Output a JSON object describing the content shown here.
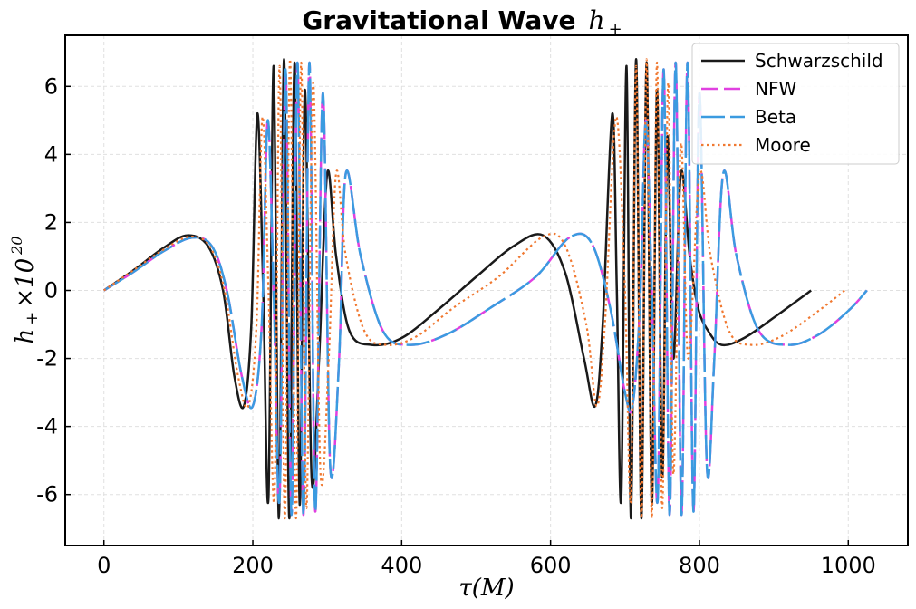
{
  "chart_data": {
    "type": "line",
    "title": "Gravitational Wave",
    "title_math": "h",
    "title_math_sub": "+",
    "xlabel": "τ(M)",
    "ylabel_main": "h",
    "ylabel_sub": "+",
    "ylabel_times": "×10",
    "ylabel_exp": "20",
    "xlim": [
      -52,
      1080
    ],
    "ylim": [
      -7.5,
      7.5
    ],
    "xticks": [
      0,
      200,
      400,
      600,
      800,
      1000
    ],
    "xtick_labels": [
      "0",
      "200",
      "400",
      "600",
      "800",
      "1000"
    ],
    "yticks": [
      -6,
      -4,
      -2,
      0,
      2,
      4,
      6
    ],
    "ytick_labels": [
      "-6",
      "-4",
      "-2",
      "0",
      "2",
      "4",
      "6"
    ],
    "grid": true,
    "legend_position": "top-right",
    "series": [
      {
        "name": "Schwarzschild",
        "color": "#1a1a1a",
        "style": "solid",
        "x": [
          0,
          40,
          80,
          112,
          140,
          160,
          175,
          188,
          198,
          206,
          214,
          221,
          228,
          235,
          242,
          249,
          256,
          263,
          270,
          279,
          289,
          300,
          312,
          330,
          360,
          400,
          450,
          500,
          550,
          590,
          620,
          645,
          660,
          670,
          683,
          689,
          695,
          702,
          708,
          715,
          722,
          729,
          736,
          743,
          750,
          757,
          765,
          775,
          787,
          798,
          812,
          830,
          860,
          900,
          950
        ],
        "y": [
          0,
          0.6,
          1.25,
          1.62,
          1.3,
          0,
          -2.5,
          -3.4,
          -1,
          5.2,
          0,
          -6.1,
          6.6,
          -6.7,
          6.8,
          -6.7,
          6.7,
          -6.3,
          5.9,
          -5.5,
          -2.0,
          3.45,
          1.0,
          -1.2,
          -1.6,
          -1.4,
          -0.55,
          0.4,
          1.3,
          1.62,
          0.5,
          -2.0,
          -3.4,
          -1.0,
          5.2,
          0,
          -6.1,
          6.6,
          -6.7,
          6.8,
          -6.7,
          6.7,
          -6.3,
          5.9,
          -5.5,
          4.5,
          -2.0,
          3.45,
          1.0,
          -0.5,
          -1.2,
          -1.6,
          -1.4,
          -0.8,
          0
        ]
      },
      {
        "name": "NFW",
        "color": "#e040e0",
        "style": "dash",
        "x": [
          0,
          40,
          80,
          118,
          145,
          165,
          185,
          200,
          212,
          220,
          228,
          236,
          244,
          252,
          260,
          268,
          276,
          284,
          294,
          304,
          316,
          325,
          345,
          375,
          410,
          460,
          520,
          580,
          625,
          655,
          680,
          700,
          710,
          720,
          728,
          736,
          744,
          752,
          760,
          768,
          776,
          784,
          792,
          800,
          810,
          820,
          832,
          850,
          880,
          920,
          960,
          1000,
          1025
        ],
        "y": [
          0,
          0.55,
          1.15,
          1.55,
          1.3,
          0,
          -2.5,
          -3.4,
          -1,
          5.0,
          0,
          -6.1,
          6.5,
          -6.6,
          6.7,
          -6.6,
          6.7,
          -6.5,
          5.8,
          -5.2,
          -2.0,
          3.45,
          1.0,
          -1.2,
          -1.6,
          -1.3,
          -0.5,
          0.4,
          1.55,
          1.4,
          -0.5,
          -3.0,
          -3.4,
          -0.5,
          5.0,
          0,
          -6.1,
          6.5,
          -6.6,
          6.7,
          -6.6,
          6.7,
          -6.5,
          5.8,
          -5.2,
          -2.0,
          3.45,
          1.0,
          -1.2,
          -1.6,
          -1.3,
          -0.6,
          0
        ]
      },
      {
        "name": "Beta",
        "color": "#3b9be0",
        "style": "longdash",
        "x": [
          0,
          40,
          80,
          118,
          145,
          165,
          185,
          200,
          212,
          220,
          228,
          236,
          244,
          252,
          260,
          268,
          276,
          284,
          294,
          304,
          316,
          325,
          345,
          375,
          410,
          460,
          520,
          580,
          625,
          655,
          680,
          700,
          710,
          720,
          728,
          736,
          744,
          752,
          760,
          768,
          776,
          784,
          792,
          800,
          810,
          820,
          832,
          850,
          880,
          920,
          960,
          1000,
          1025
        ],
        "y": [
          0,
          0.55,
          1.15,
          1.55,
          1.3,
          0,
          -2.5,
          -3.4,
          -1,
          5.0,
          0,
          -6.1,
          6.5,
          -6.6,
          6.7,
          -6.6,
          6.7,
          -6.5,
          5.8,
          -5.2,
          -2.0,
          3.45,
          1.0,
          -1.2,
          -1.6,
          -1.3,
          -0.5,
          0.4,
          1.55,
          1.4,
          -0.5,
          -3.0,
          -3.4,
          -0.5,
          5.0,
          0,
          -6.1,
          6.5,
          -6.6,
          6.7,
          -6.6,
          6.7,
          -6.5,
          5.8,
          -5.2,
          -2.0,
          3.45,
          1.0,
          -1.2,
          -1.6,
          -1.3,
          -0.6,
          0
        ]
      },
      {
        "name": "Moore",
        "color": "#f07830",
        "style": "dot",
        "x": [
          0,
          40,
          80,
          115,
          142,
          162,
          180,
          194,
          205,
          213,
          221,
          229,
          236,
          243,
          250,
          258,
          265,
          272,
          281,
          291,
          302,
          312,
          325,
          350,
          380,
          420,
          470,
          530,
          590,
          620,
          648,
          662,
          673,
          688,
          700,
          708,
          715,
          722,
          729,
          736,
          743,
          750,
          758,
          765,
          775,
          785,
          800,
          815,
          840,
          870,
          910,
          960,
          995
        ],
        "y": [
          0,
          0.6,
          1.2,
          1.58,
          1.3,
          0,
          -2.5,
          -3.4,
          -1,
          5.1,
          0,
          -6.1,
          6.6,
          -6.7,
          6.8,
          -6.7,
          6.7,
          -6.4,
          6.1,
          -5.4,
          -2.0,
          3.45,
          1.0,
          -1.2,
          -1.6,
          -1.35,
          -0.5,
          0.4,
          1.58,
          1.3,
          -1.0,
          -3.4,
          -1.0,
          5.1,
          0,
          -6.1,
          6.6,
          -6.7,
          6.8,
          -6.7,
          6.7,
          -6.4,
          6.1,
          -5.4,
          4.3,
          -2.0,
          3.45,
          1.0,
          -1.2,
          -1.6,
          -1.35,
          -0.6,
          0
        ]
      }
    ]
  }
}
